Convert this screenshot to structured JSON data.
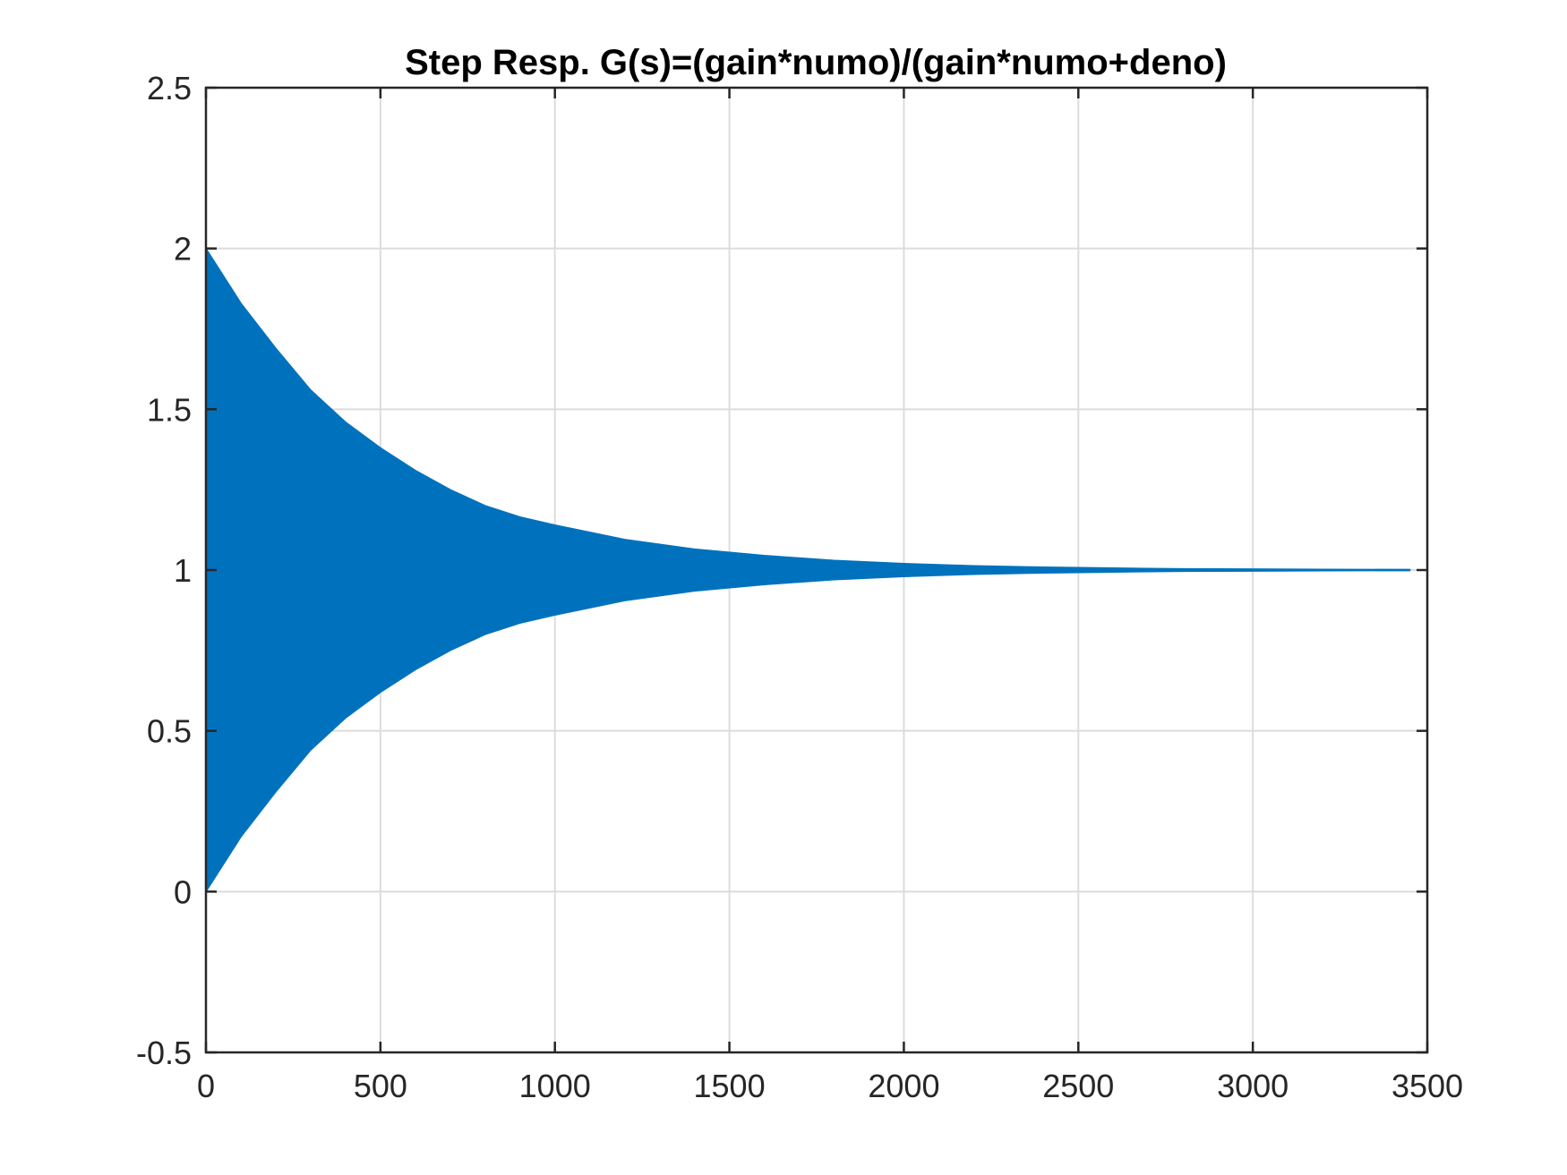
{
  "chart_data": {
    "type": "area",
    "title": "Step Resp.  G(s)=(gain*numo)/(gain*numo+deno)",
    "xlabel": "",
    "ylabel": "",
    "xlim": [
      0,
      3500
    ],
    "ylim": [
      -0.5,
      2.5
    ],
    "x_ticks": [
      "0",
      "500",
      "1000",
      "1500",
      "2000",
      "2500",
      "3000",
      "3500"
    ],
    "y_ticks": [
      "-0.5",
      "0",
      "0.5",
      "1",
      "1.5",
      "2",
      "2.5"
    ],
    "grid": true,
    "series_color": "#0072BD",
    "x_end": 3450,
    "envelope": {
      "x": [
        0,
        100,
        200,
        300,
        400,
        500,
        600,
        700,
        800,
        900,
        1000,
        1200,
        1400,
        1600,
        1800,
        2000,
        2200,
        2400,
        2600,
        2800,
        3000,
        3200,
        3450
      ],
      "upper": [
        2.0,
        1.83,
        1.69,
        1.56,
        1.46,
        1.38,
        1.31,
        1.25,
        1.2,
        1.165,
        1.14,
        1.095,
        1.065,
        1.045,
        1.03,
        1.02,
        1.013,
        1.009,
        1.006,
        1.004,
        1.003,
        1.002,
        1.0015
      ],
      "lower": [
        0.0,
        0.17,
        0.31,
        0.44,
        0.54,
        0.62,
        0.69,
        0.75,
        0.8,
        0.835,
        0.86,
        0.905,
        0.935,
        0.955,
        0.97,
        0.98,
        0.987,
        0.991,
        0.994,
        0.996,
        0.997,
        0.998,
        0.9985
      ]
    }
  }
}
